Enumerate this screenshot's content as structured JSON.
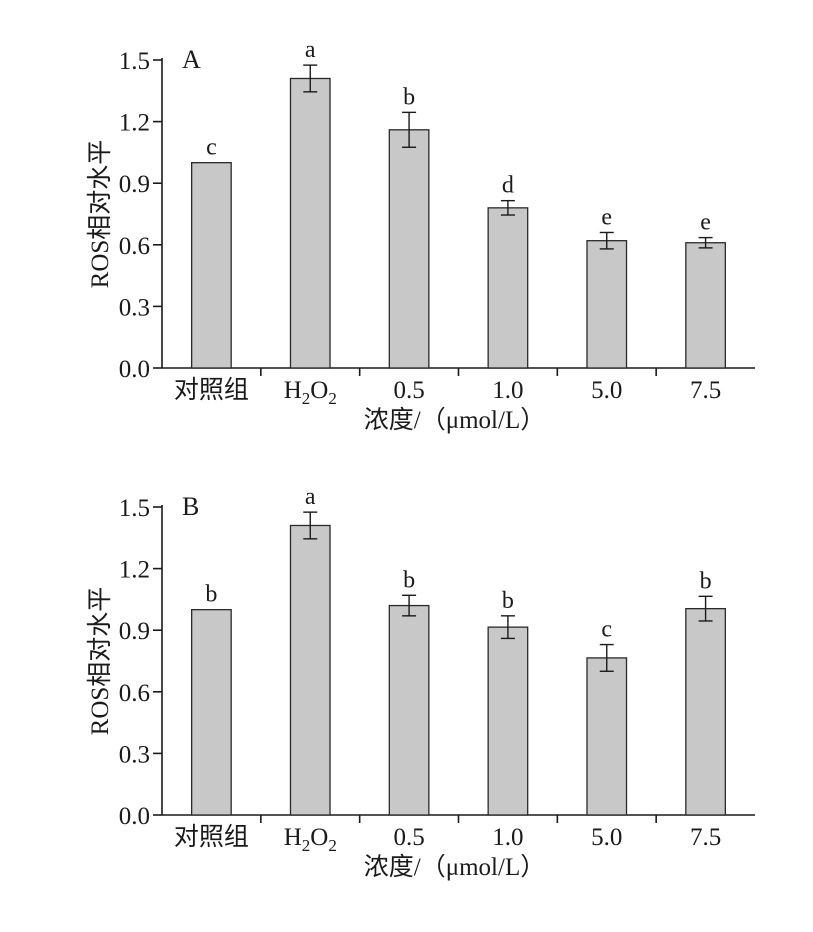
{
  "chart_data": [
    {
      "type": "bar",
      "panel_label": "A",
      "categories": [
        "对照组",
        "H2O2",
        "0.5",
        "1.0",
        "5.0",
        "7.5"
      ],
      "values": [
        1.0,
        1.41,
        1.16,
        0.78,
        0.62,
        0.61
      ],
      "errors": [
        0.0,
        0.065,
        0.085,
        0.035,
        0.04,
        0.025
      ],
      "significance": [
        "c",
        "a",
        "b",
        "d",
        "e",
        "e"
      ],
      "ylabel": "ROS相对水平",
      "xlabel": "浓度/（μmol/L）",
      "ylim": [
        0.0,
        1.5
      ],
      "yticks": [
        "0.0",
        "0.3",
        "0.6",
        "0.9",
        "1.2",
        "1.5"
      ],
      "grid": false,
      "bar_color": "#c8c8c8"
    },
    {
      "type": "bar",
      "panel_label": "B",
      "categories": [
        "对照组",
        "H2O2",
        "0.5",
        "1.0",
        "5.0",
        "7.5"
      ],
      "values": [
        1.0,
        1.41,
        1.02,
        0.915,
        0.765,
        1.005
      ],
      "errors": [
        0.0,
        0.065,
        0.05,
        0.055,
        0.065,
        0.06
      ],
      "significance": [
        "b",
        "a",
        "b",
        "b",
        "c",
        "b"
      ],
      "ylabel": "ROS相对水平",
      "xlabel": "浓度/（μmol/L）",
      "ylim": [
        0.0,
        1.5
      ],
      "yticks": [
        "0.0",
        "0.3",
        "0.6",
        "0.9",
        "1.2",
        "1.5"
      ],
      "grid": false,
      "bar_color": "#c8c8c8"
    }
  ]
}
